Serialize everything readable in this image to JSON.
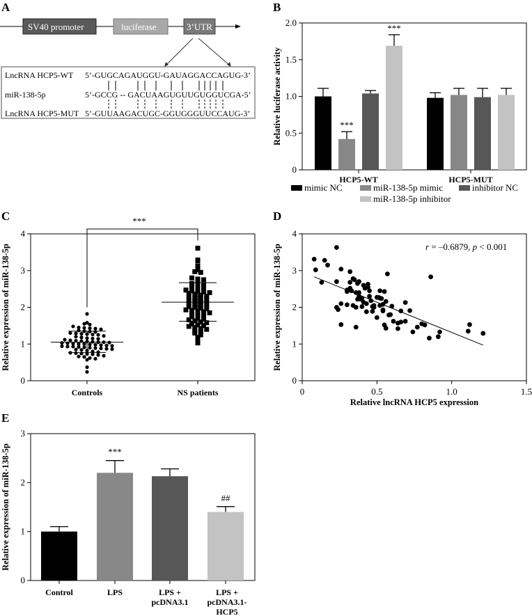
{
  "panels": {
    "A": {
      "label": "A",
      "elements": [
        {
          "name": "SV40 promoter",
          "color": "#5a5a5a"
        },
        {
          "name": "luciferase",
          "color": "#a8a8a8"
        },
        {
          "name": "3’UTR",
          "color": "#7a7a7a"
        }
      ],
      "rows": [
        {
          "name": "LncRNA HCP5-WT",
          "seq": "5’-GUGCAGAUGGU-GAUAGGACCAGUG-3’"
        },
        {
          "name": "miR-138-5p",
          "seq": "5’-GCCG -- GACUAAGUGUUGUGGUCGA-5’"
        },
        {
          "name": "LncRNA HCP5-MUT",
          "seq": "5’-GUUAAGACUGC-GGUGGGUUCCAUG-3’"
        }
      ]
    },
    "B": {
      "label": "B"
    },
    "C": {
      "label": "C"
    },
    "D": {
      "label": "D"
    },
    "E": {
      "label": "E"
    }
  },
  "chart_data": [
    {
      "panel": "B",
      "type": "bar",
      "ylabel": "Relative luciferase activity",
      "ylim": [
        0,
        2.0
      ],
      "yticks": [
        "0",
        "0.5",
        "1.0",
        "1.5",
        "2.0"
      ],
      "categories": [
        "HCP5-WT",
        "HCP5-MUT"
      ],
      "legend_placement": "bottom",
      "series": [
        {
          "name": "mimic NC",
          "color": "#000000",
          "values": [
            1.0,
            0.98
          ],
          "errors": [
            0.11,
            0.07
          ],
          "annotations": [
            "",
            ""
          ]
        },
        {
          "name": "miR-138-5p mimic",
          "color": "#888888",
          "values": [
            0.42,
            1.02
          ],
          "errors": [
            0.1,
            0.09
          ],
          "annotations": [
            "***",
            ""
          ]
        },
        {
          "name": "inhibitor NC",
          "color": "#575757",
          "values": [
            1.04,
            0.99
          ],
          "errors": [
            0.04,
            0.12
          ],
          "annotations": [
            "",
            ""
          ]
        },
        {
          "name": "miR-138-5p inhibitor",
          "color": "#c3c3c3",
          "values": [
            1.69,
            1.02
          ],
          "errors": [
            0.15,
            0.09
          ],
          "annotations": [
            "***",
            ""
          ]
        }
      ]
    },
    {
      "panel": "C",
      "type": "scatter",
      "ylabel": "Relative expression of miR-138-5p",
      "ylim": [
        0,
        4
      ],
      "yticks": [
        "0",
        "1",
        "2",
        "3",
        "4"
      ],
      "categories": [
        "Controls",
        "NS patients"
      ],
      "significance": "***",
      "groups": [
        {
          "name": "Controls",
          "marker": "circle",
          "mean": 1.05,
          "sd_low": 0.77,
          "sd_high": 1.35,
          "values": [
            1.82,
            1.58,
            1.55,
            1.53,
            1.48,
            1.45,
            1.44,
            1.43,
            1.42,
            1.4,
            1.37,
            1.35,
            1.34,
            1.33,
            1.3,
            1.29,
            1.28,
            1.27,
            1.26,
            1.25,
            1.22,
            1.2,
            1.18,
            1.16,
            1.15,
            1.14,
            1.12,
            1.1,
            1.09,
            1.08,
            1.07,
            1.06,
            1.05,
            1.05,
            1.04,
            1.03,
            1.02,
            1.01,
            1.0,
            1.0,
            0.99,
            0.98,
            0.97,
            0.96,
            0.95,
            0.94,
            0.93,
            0.93,
            0.92,
            0.91,
            0.9,
            0.89,
            0.88,
            0.87,
            0.86,
            0.85,
            0.84,
            0.82,
            0.8,
            0.78,
            0.76,
            0.75,
            0.74,
            0.73,
            0.72,
            0.7,
            0.68,
            0.66,
            0.65,
            0.62,
            0.6,
            0.57,
            0.37,
            0.24
          ]
        },
        {
          "name": "NS patients",
          "marker": "square",
          "mean": 2.14,
          "sd_low": 1.62,
          "sd_high": 2.67,
          "values": [
            3.61,
            3.29,
            3.27,
            3.13,
            3.02,
            2.97,
            2.95,
            2.8,
            2.77,
            2.75,
            2.7,
            2.65,
            2.62,
            2.6,
            2.55,
            2.52,
            2.5,
            2.47,
            2.45,
            2.44,
            2.42,
            2.4,
            2.38,
            2.36,
            2.33,
            2.3,
            2.28,
            2.25,
            2.24,
            2.22,
            2.2,
            2.18,
            2.15,
            2.13,
            2.1,
            2.08,
            2.06,
            2.05,
            2.02,
            2.0,
            1.98,
            1.96,
            1.93,
            1.92,
            1.9,
            1.88,
            1.85,
            1.82,
            1.8,
            1.78,
            1.75,
            1.72,
            1.7,
            1.66,
            1.63,
            1.6,
            1.58,
            1.55,
            1.52,
            1.5,
            1.48,
            1.45,
            1.42,
            1.4,
            1.36,
            1.33,
            1.3,
            1.25,
            1.18,
            1.12,
            1.03
          ]
        }
      ]
    },
    {
      "panel": "D",
      "type": "scatter",
      "xlabel": "Relative lncRNA HCP5 expression",
      "ylabel": "Relative expression of miR-138-5p",
      "xlim": [
        0,
        1.5
      ],
      "ylim": [
        0,
        4
      ],
      "xticks": [
        "0",
        "0.5",
        "1.0",
        "1.5"
      ],
      "yticks": [
        "0",
        "1",
        "2",
        "3",
        "4"
      ],
      "annotation": {
        "r_sym": "r",
        "r_text": " = –0.6879, ",
        "p_sym": "p",
        "p_text": " < 0.001"
      },
      "trendline": [
        [
          0.08,
          2.83
        ],
        [
          1.21,
          0.97
        ]
      ],
      "points": [
        [
          0.08,
          3.31
        ],
        [
          0.09,
          3.02
        ],
        [
          0.15,
          3.28
        ],
        [
          0.17,
          3.15
        ],
        [
          0.13,
          2.68
        ],
        [
          0.23,
          3.63
        ],
        [
          0.26,
          3.04
        ],
        [
          0.23,
          2.7
        ],
        [
          0.32,
          2.97
        ],
        [
          0.23,
          2.0
        ],
        [
          0.24,
          1.94
        ],
        [
          0.26,
          2.1
        ],
        [
          0.26,
          1.53
        ],
        [
          0.3,
          2.07
        ],
        [
          0.3,
          2.43
        ],
        [
          0.3,
          2.47
        ],
        [
          0.32,
          2.68
        ],
        [
          0.32,
          2.52
        ],
        [
          0.33,
          2.45
        ],
        [
          0.34,
          2.78
        ],
        [
          0.35,
          2.75
        ],
        [
          0.34,
          2.05
        ],
        [
          0.36,
          2.0
        ],
        [
          0.36,
          1.46
        ],
        [
          0.36,
          2.4
        ],
        [
          0.37,
          2.22
        ],
        [
          0.37,
          2.65
        ],
        [
          0.38,
          2.7
        ],
        [
          0.38,
          2.4
        ],
        [
          0.38,
          2.3
        ],
        [
          0.39,
          2.22
        ],
        [
          0.4,
          2.25
        ],
        [
          0.4,
          2.02
        ],
        [
          0.41,
          2.6
        ],
        [
          0.41,
          2.14
        ],
        [
          0.42,
          2.52
        ],
        [
          0.43,
          2.1
        ],
        [
          0.43,
          1.88
        ],
        [
          0.44,
          2.55
        ],
        [
          0.44,
          2.63
        ],
        [
          0.45,
          2.45
        ],
        [
          0.45,
          2.3
        ],
        [
          0.46,
          2.18
        ],
        [
          0.47,
          2.02
        ],
        [
          0.47,
          1.89
        ],
        [
          0.48,
          2.05
        ],
        [
          0.48,
          2.0
        ],
        [
          0.5,
          2.27
        ],
        [
          0.5,
          1.72
        ],
        [
          0.51,
          2.27
        ],
        [
          0.52,
          2.25
        ],
        [
          0.52,
          2.45
        ],
        [
          0.52,
          2.05
        ],
        [
          0.53,
          2.24
        ],
        [
          0.54,
          2.08
        ],
        [
          0.54,
          1.93
        ],
        [
          0.54,
          1.9
        ],
        [
          0.55,
          2.43
        ],
        [
          0.55,
          1.52
        ],
        [
          0.56,
          2.16
        ],
        [
          0.56,
          1.43
        ],
        [
          0.57,
          2.91
        ],
        [
          0.58,
          1.79
        ],
        [
          0.59,
          1.8
        ],
        [
          0.6,
          2.03
        ],
        [
          0.61,
          1.62
        ],
        [
          0.64,
          1.57
        ],
        [
          0.64,
          1.42
        ],
        [
          0.66,
          1.6
        ],
        [
          0.66,
          1.9
        ],
        [
          0.69,
          2.13
        ],
        [
          0.69,
          1.62
        ],
        [
          0.72,
          1.91
        ],
        [
          0.74,
          1.33
        ],
        [
          0.77,
          1.46
        ],
        [
          0.8,
          1.55
        ],
        [
          0.82,
          1.52
        ],
        [
          0.85,
          1.16
        ],
        [
          0.86,
          2.83
        ],
        [
          0.91,
          1.2
        ],
        [
          0.92,
          1.33
        ],
        [
          1.11,
          1.35
        ],
        [
          1.12,
          1.53
        ],
        [
          1.21,
          1.29
        ]
      ]
    },
    {
      "panel": "E",
      "type": "bar",
      "ylabel": "Relative expression of miR-138-5p",
      "ylim": [
        0,
        3
      ],
      "yticks": [
        "0",
        "1",
        "2",
        "3"
      ],
      "categories": [
        [
          "Control"
        ],
        [
          "LPS"
        ],
        [
          "LPS +",
          "pcDNA3.1"
        ],
        [
          "LPS +",
          "pcDNA3.1-",
          "HCP5"
        ]
      ],
      "values": [
        1.0,
        2.2,
        2.13,
        1.4
      ],
      "errors": [
        0.1,
        0.25,
        0.15,
        0.11
      ],
      "colors": [
        "#000000",
        "#888888",
        "#575757",
        "#c3c3c3"
      ],
      "annotations": [
        "",
        "***",
        "",
        "##"
      ]
    }
  ]
}
